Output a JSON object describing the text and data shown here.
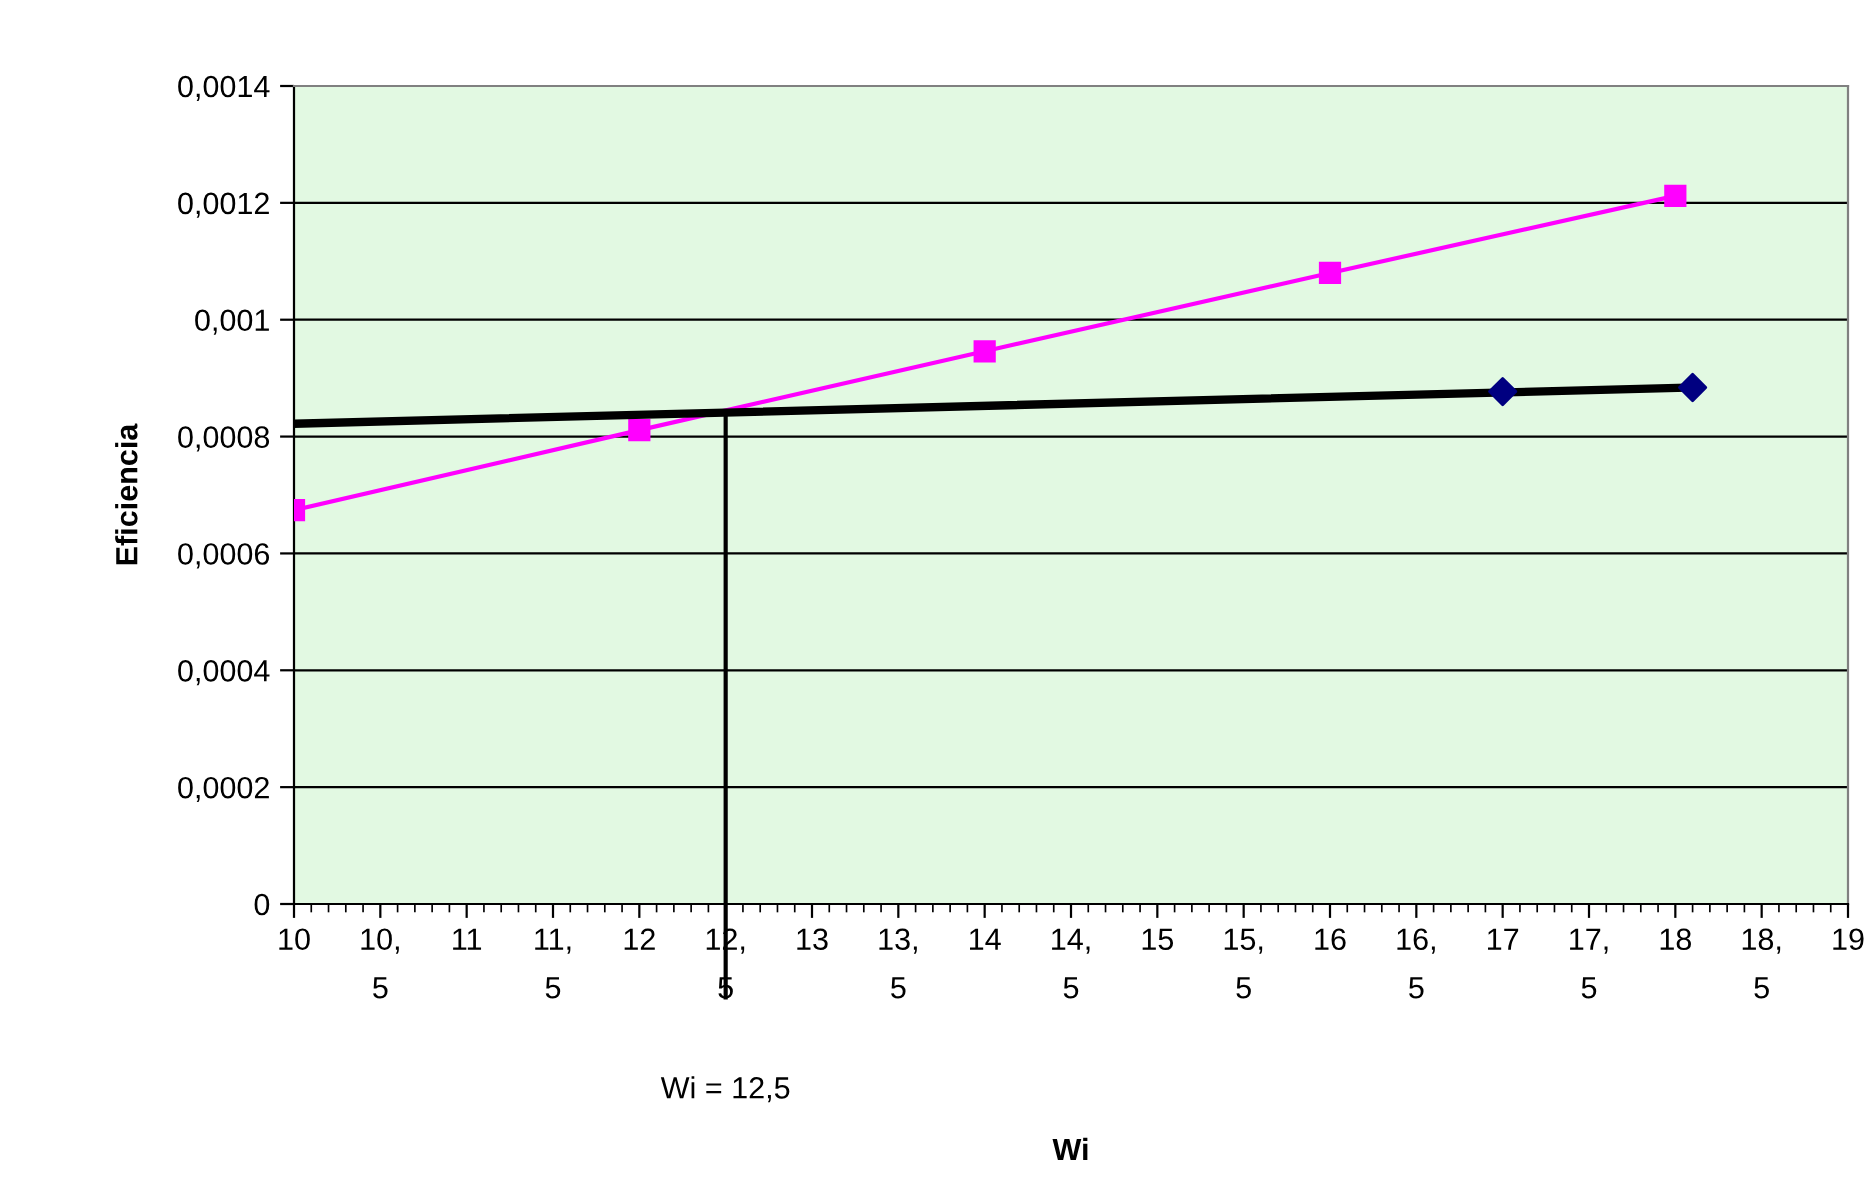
{
  "chart_data": {
    "type": "line",
    "xlabel": "Wi",
    "ylabel": "Eficiencia",
    "xlim": [
      10,
      19
    ],
    "xticks": [
      10,
      {
        "value": 10.5,
        "label": "10,\n5"
      },
      11,
      {
        "value": 11.5,
        "label": "11,\n5"
      },
      12,
      {
        "value": 12.5,
        "label": "12,\n5"
      },
      13,
      {
        "value": 13.5,
        "label": "13,\n5"
      },
      14,
      {
        "value": 14.5,
        "label": "14,\n5"
      },
      15,
      {
        "value": 15.5,
        "label": "15,\n5"
      },
      16,
      {
        "value": 16.5,
        "label": "16,\n5"
      },
      17,
      {
        "value": 17.5,
        "label": "17,\n5"
      },
      18,
      {
        "value": 18.5,
        "label": "18,\n5"
      },
      19
    ],
    "ylim": [
      0,
      0.0014
    ],
    "yticks": [
      0,
      {
        "value": 0.0002,
        "label": "0,0002"
      },
      {
        "value": 0.0004,
        "label": "0,0004"
      },
      {
        "value": 0.0006,
        "label": "0,0006"
      },
      {
        "value": 0.0008,
        "label": "0,0008"
      },
      {
        "value": 0.001,
        "label": "0,001"
      },
      {
        "value": 0.0012,
        "label": "0,0012"
      },
      {
        "value": 0.0014,
        "label": "0,0014"
      }
    ],
    "grid": "y",
    "series": [
      {
        "color": "#ff00ff",
        "marker": "square",
        "x": [
          10,
          12,
          14,
          16,
          18
        ],
        "values": [
          0.000674,
          0.000811,
          0.000946,
          0.00108,
          0.001212
        ]
      },
      {
        "color": "#000000",
        "marker": "none",
        "x": [
          10,
          18.1
        ],
        "values": [
          0.000822,
          0.000884
        ]
      },
      {
        "type": "scatter",
        "color": "#000080",
        "marker": "diamond",
        "x": [
          17,
          18.1
        ],
        "values": [
          0.000877,
          0.000884
        ]
      }
    ],
    "ref_lines": [
      {
        "axis": "x",
        "value": 12.5,
        "label": "Wi = 12,5",
        "color": "#000000"
      }
    ]
  }
}
